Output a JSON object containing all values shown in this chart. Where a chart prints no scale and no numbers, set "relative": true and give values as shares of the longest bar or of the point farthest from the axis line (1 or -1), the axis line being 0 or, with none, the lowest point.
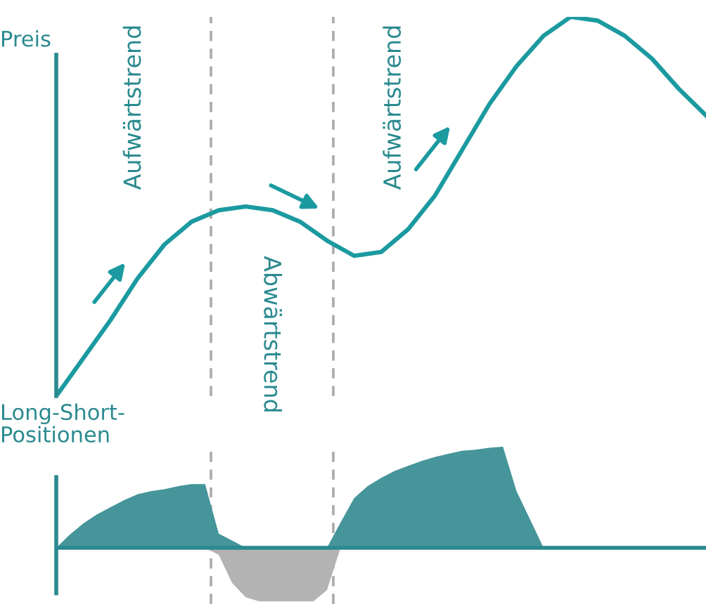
{
  "chart_data": [
    {
      "type": "line",
      "relative": true,
      "ylabel": "Preis",
      "categories": [
        null,
        null,
        null,
        null,
        null,
        null,
        null,
        null,
        null,
        null,
        null,
        null,
        null,
        null,
        null,
        null,
        null,
        null,
        null,
        null,
        null,
        null,
        null,
        null,
        null
      ],
      "series": [
        {
          "color": "#1b9aa0",
          "values": [
            0,
            0.1,
            0.2,
            0.31,
            0.4,
            0.46,
            0.49,
            0.5,
            0.49,
            0.46,
            0.41,
            0.37,
            0.38,
            0.44,
            0.53,
            0.65,
            0.77,
            0.87,
            0.95,
            1.0,
            0.99,
            0.95,
            0.89,
            0.81,
            0.74
          ]
        }
      ],
      "annotations": [
        "Aufwärtstrend",
        "Abwärtstrend",
        "Aufwärtstrend"
      ]
    },
    {
      "type": "area",
      "relative": true,
      "ylabel": "Long-Short-\nPositionen",
      "categories": [
        null,
        null,
        null,
        null,
        null,
        null,
        null,
        null,
        null,
        null,
        null,
        null,
        null,
        null,
        null,
        null,
        null,
        null,
        null,
        null,
        null,
        null,
        null,
        null,
        null,
        null,
        null,
        null,
        null,
        null,
        null,
        null,
        null,
        null,
        null,
        null,
        null,
        null,
        null,
        null,
        null,
        null,
        null,
        null,
        null,
        null,
        null,
        null,
        null
      ],
      "series": [
        {
          "color": "#45959a",
          "values": [
            0,
            0.13,
            0.24,
            0.33,
            0.4,
            0.47,
            0.53,
            0.56,
            0.58,
            0.61,
            0.63,
            0.63,
            0.14,
            0.07,
            0,
            0,
            0,
            0,
            0,
            0,
            0,
            0.25,
            0.49,
            0.61,
            0.69,
            0.76,
            0.81,
            0.86,
            0.9,
            0.93,
            0.96,
            0.97,
            0.99,
            1,
            0.56,
            0.28,
            0,
            0,
            0,
            0,
            0,
            0,
            0,
            0,
            0,
            0,
            0,
            0,
            0
          ]
        },
        {
          "color": "#b3b3b3",
          "values": [
            0,
            0,
            0,
            0,
            0,
            0,
            0,
            0,
            0,
            0,
            0,
            0,
            -0.07,
            -0.35,
            -0.49,
            -0.53,
            -0.53,
            -0.53,
            -0.53,
            -0.53,
            -0.42,
            0,
            0,
            0,
            0,
            0,
            0,
            0,
            0,
            0,
            0,
            0,
            0,
            0,
            0,
            0,
            0,
            0,
            0,
            0,
            0,
            0,
            0,
            0,
            0,
            0,
            0,
            0,
            0
          ]
        }
      ]
    }
  ]
}
